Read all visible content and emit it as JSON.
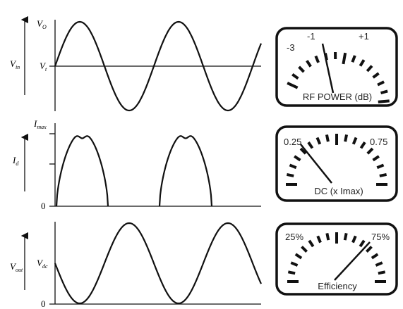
{
  "panels": [
    {
      "axis_label": {
        "main": "V",
        "sub": "in"
      },
      "top_label": {
        "main": "V",
        "sub": "O"
      },
      "mid_label": {
        "main": "V",
        "sub": "t"
      }
    },
    {
      "axis_label": {
        "main": "I",
        "sub": "d"
      },
      "top_label": {
        "main": "I",
        "sub": "max"
      },
      "zero_label": "0"
    },
    {
      "axis_label": {
        "main": "V",
        "sub": "out"
      },
      "mid_label": {
        "main": "V",
        "sub": "dc"
      },
      "zero_label": "0"
    }
  ],
  "meters": [
    {
      "scale": [
        "-3",
        "-1",
        "+1"
      ],
      "caption": "RF POWER (dB)"
    },
    {
      "scale": [
        "0.25",
        "0.75"
      ],
      "caption": "DC (x Imax)"
    },
    {
      "scale": [
        "25%",
        "75%"
      ],
      "caption": "Efficiency"
    }
  ]
}
